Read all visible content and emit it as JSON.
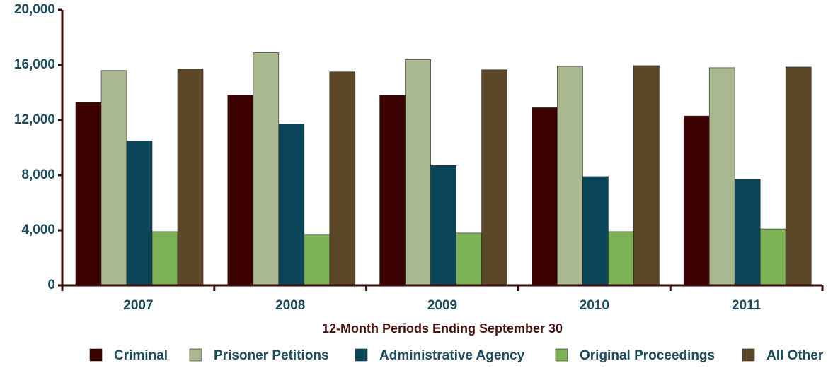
{
  "chart_data": {
    "type": "bar",
    "x_label": "12-Month Periods Ending September 30",
    "categories": [
      "2007",
      "2008",
      "2009",
      "2010",
      "2011"
    ],
    "series": [
      {
        "name": "Criminal",
        "color": "#3b0000",
        "values": [
          13300,
          13800,
          13800,
          12900,
          12300
        ]
      },
      {
        "name": "Prisoner Petitions",
        "color": "#aab890",
        "values": [
          15600,
          16900,
          16400,
          15900,
          15800
        ]
      },
      {
        "name": "Administrative Agency",
        "color": "#0b4559",
        "values": [
          10500,
          11700,
          8700,
          7900,
          7700
        ]
      },
      {
        "name": "Original Proceedings",
        "color": "#7db356",
        "values": [
          3900,
          3700,
          3800,
          3900,
          4100
        ]
      },
      {
        "name": "All Other",
        "color": "#5c4828",
        "values": [
          15700,
          15500,
          15650,
          15950,
          15850
        ]
      }
    ],
    "ylim": [
      0,
      20000
    ],
    "yticks": [
      0,
      {
        "value": 4000,
        "label": "4,000"
      },
      {
        "value": 8000,
        "label": "8,000"
      },
      {
        "value": 12000,
        "label": "12,000"
      },
      {
        "value": 16000,
        "label": "16,000"
      },
      {
        "value": 20000,
        "label": "20,000"
      }
    ],
    "grid": false,
    "legend": "bottom"
  }
}
